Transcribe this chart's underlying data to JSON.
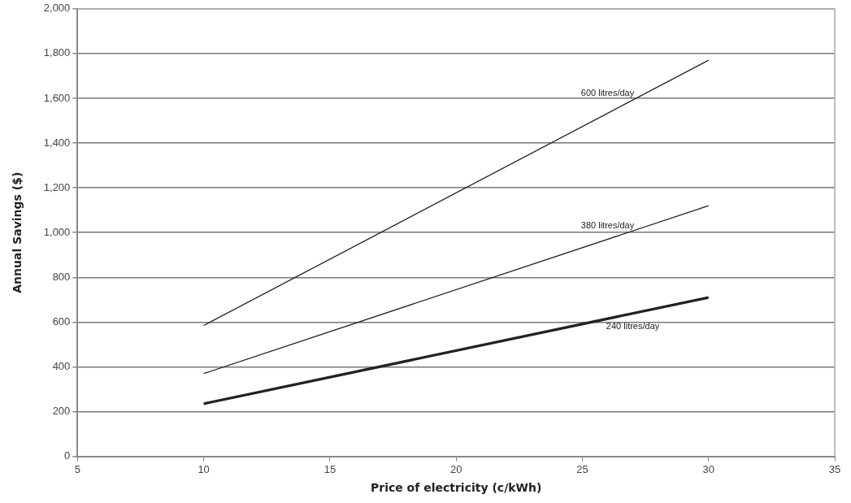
{
  "chart_data": {
    "type": "line",
    "xlabel": "Price of electricity (c/kWh)",
    "ylabel": "Annual Savings ($)",
    "xlim": [
      5,
      35
    ],
    "xticks": [
      5,
      10,
      15,
      20,
      25,
      30,
      35
    ],
    "ylim": [
      0,
      2000
    ],
    "yticks": [
      {
        "value": 0,
        "label": "0"
      },
      {
        "value": 200,
        "label": "200"
      },
      {
        "value": 400,
        "label": "400"
      },
      {
        "value": 600,
        "label": "600"
      },
      {
        "value": 800,
        "label": "800"
      },
      {
        "value": 1000,
        "label": "1,000"
      },
      {
        "value": 1200,
        "label": "1,200"
      },
      {
        "value": 1400,
        "label": "1,400"
      },
      {
        "value": 1600,
        "label": "1,600"
      },
      {
        "value": 1800,
        "label": "1,800"
      },
      {
        "value": 2000,
        "label": "2,000"
      }
    ],
    "x": [
      10,
      30
    ],
    "grid": "y",
    "legend": false,
    "marker": "none",
    "line_style": "solid",
    "series": [
      {
        "name": "600 litres/day",
        "color": "#222222",
        "values": [
          585,
          1770
        ]
      },
      {
        "name": "380 litres/day",
        "color": "#222222",
        "values": [
          370,
          1120
        ]
      },
      {
        "name": "240 litres/day",
        "color": "#222222",
        "values": [
          235,
          710
        ]
      }
    ]
  }
}
